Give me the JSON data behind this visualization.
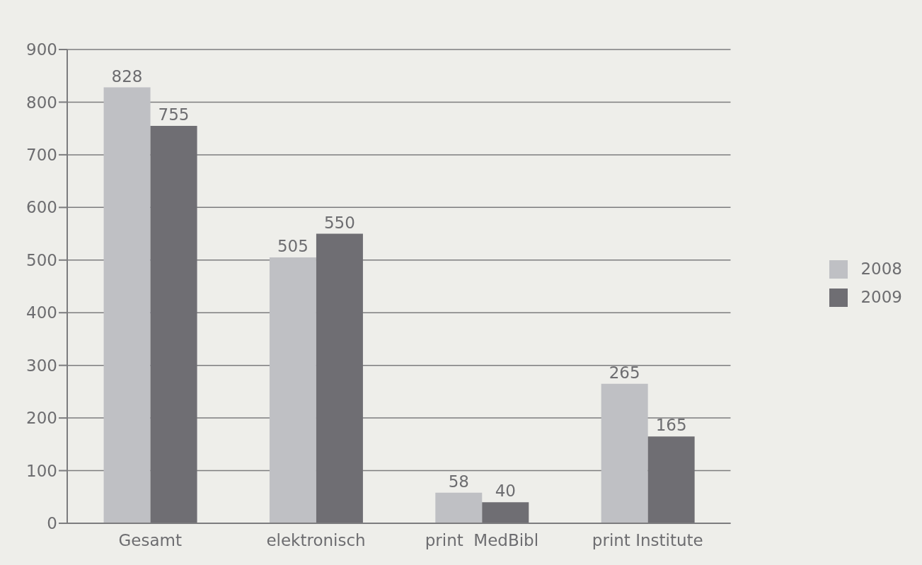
{
  "chart_data": {
    "type": "bar",
    "categories": [
      "Gesamt",
      "elektronisch",
      "print  MedBibl",
      "print Institute"
    ],
    "series": [
      {
        "name": "2008",
        "color": "#bfc0c4",
        "values": [
          828,
          505,
          58,
          265
        ]
      },
      {
        "name": "2009",
        "color": "#6f6e73",
        "values": [
          755,
          550,
          40,
          165
        ]
      }
    ],
    "ylim": [
      0,
      900
    ],
    "yticks": [
      0,
      100,
      200,
      300,
      400,
      500,
      600,
      700,
      800,
      900
    ],
    "grid": "y",
    "legend": "right",
    "data_labels": true
  }
}
